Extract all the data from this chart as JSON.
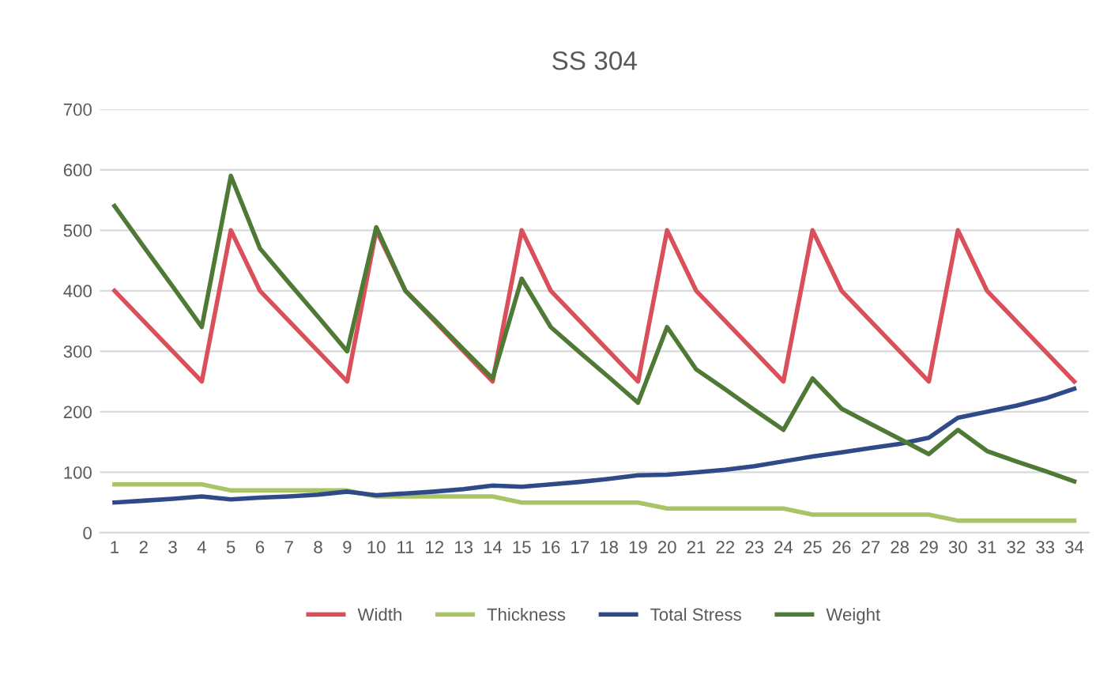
{
  "chart_data": {
    "type": "line",
    "title": "SS 304",
    "categories": [
      "1",
      "2",
      "3",
      "4",
      "5",
      "6",
      "7",
      "8",
      "9",
      "10",
      "11",
      "12",
      "13",
      "14",
      "15",
      "16",
      "17",
      "18",
      "19",
      "20",
      "21",
      "22",
      "23",
      "24",
      "25",
      "26",
      "27",
      "28",
      "29",
      "30",
      "31",
      "32",
      "33",
      "34"
    ],
    "series": [
      {
        "name": "Width",
        "color": "#d9505a",
        "values": [
          400,
          350,
          300,
          250,
          500,
          400,
          350,
          300,
          250,
          500,
          400,
          350,
          300,
          250,
          500,
          400,
          350,
          300,
          250,
          500,
          400,
          350,
          300,
          250,
          500,
          400,
          350,
          300,
          250,
          500,
          400,
          350,
          300,
          250
        ]
      },
      {
        "name": "Thickness",
        "color": "#a9c466",
        "values": [
          80,
          80,
          80,
          80,
          70,
          70,
          70,
          70,
          70,
          60,
          60,
          60,
          60,
          60,
          50,
          50,
          50,
          50,
          50,
          40,
          40,
          40,
          40,
          40,
          30,
          30,
          30,
          30,
          30,
          20,
          20,
          20,
          20,
          20
        ]
      },
      {
        "name": "Total Stress",
        "color": "#2f4a88",
        "values": [
          50,
          53,
          56,
          60,
          55,
          58,
          60,
          63,
          68,
          62,
          65,
          68,
          72,
          78,
          76,
          80,
          84,
          89,
          95,
          96,
          100,
          104,
          110,
          118,
          126,
          133,
          140,
          147,
          157,
          190,
          200,
          210,
          222,
          238
        ]
      },
      {
        "name": "Weight",
        "color": "#4e7a36",
        "values": [
          540,
          473,
          407,
          340,
          590,
          470,
          413,
          357,
          300,
          505,
          400,
          352,
          303,
          255,
          420,
          340,
          298,
          257,
          215,
          340,
          270,
          237,
          203,
          170,
          255,
          205,
          180,
          155,
          130,
          170,
          135,
          118,
          102,
          85
        ]
      }
    ],
    "ylim": [
      0,
      700
    ],
    "yticks": [
      0,
      100,
      200,
      300,
      400,
      500,
      600,
      700
    ],
    "grid": "y",
    "legend": "bottom",
    "line_style": "solid",
    "marker": "none"
  }
}
